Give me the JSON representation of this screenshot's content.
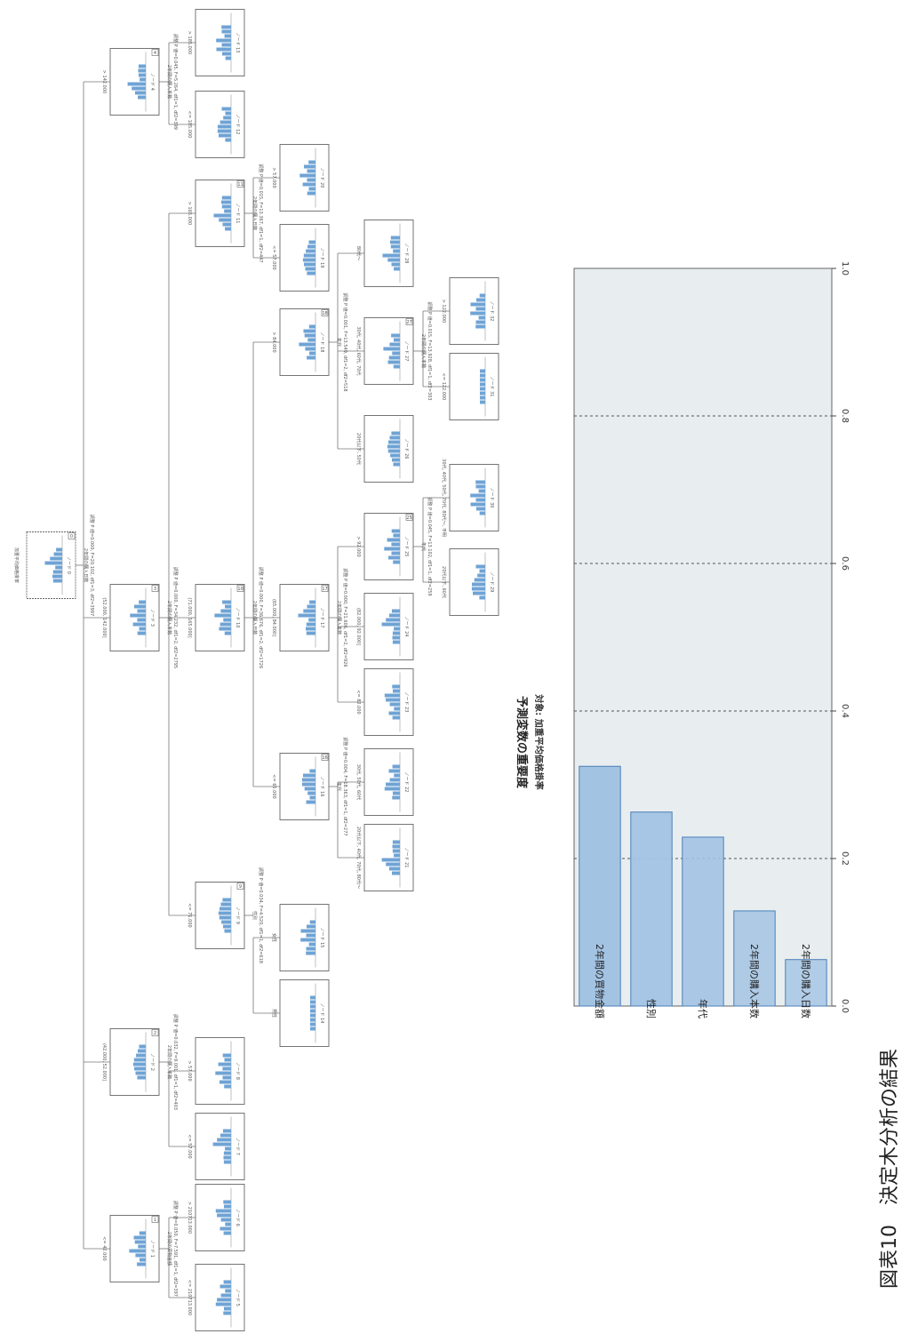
{
  "figure_caption": "図表10　決定木分析の結果",
  "tree": {
    "root_title": "加重平均価格掛率",
    "nodes": [
      {
        "id": "0",
        "label": "ノード 0",
        "badge": "0",
        "split": "2年間の購入日数",
        "stats": "調整 P 値=0.000, F=20.102, df1=3, df2=3997"
      },
      {
        "id": "1",
        "label": "ノード 1",
        "badge": "1",
        "edge": "<= 42.000",
        "split": "2年間の買物金額",
        "stats": "調整 P 値=0.050, F=7.591, df1=1, df2=397"
      },
      {
        "id": "2",
        "label": "ノード 2",
        "badge": "2",
        "edge": "(42.000, 52.000]",
        "split": "2年間の購入本数",
        "stats": "調整 P 値=0.032, F=9.001, df1=1, df2=403"
      },
      {
        "id": "3",
        "label": "ノード 3",
        "badge": "3",
        "edge": "(52.000, 142.000]",
        "split": "2年間の購入本数",
        "stats": "調整 P 値=0.000, F=34.232, df1=2, df2=2795"
      },
      {
        "id": "4",
        "label": "ノード 4",
        "badge": "4",
        "edge": "> 142.000",
        "split": "2年間の購入本数",
        "stats": "調整 P 値=0.045, F=5.264, df1=1, df2=399"
      },
      {
        "id": "5",
        "label": "ノード 5",
        "edge": "<= 210713.000"
      },
      {
        "id": "6",
        "label": "ノード 6",
        "edge": "> 210713.000"
      },
      {
        "id": "7",
        "label": "ノード 7",
        "edge": "<= 57.000"
      },
      {
        "id": "8",
        "label": "ノード 8",
        "edge": "> 57.000"
      },
      {
        "id": "9",
        "label": "ノード 9",
        "badge": "9",
        "edge": "<= 71.000",
        "split": "性別",
        "stats": "調整 P 値=0.034, F=4.520, df1=1, df2=618"
      },
      {
        "id": "10",
        "label": "ノード 10",
        "badge": "10",
        "edge": "(71.000, 165.000]",
        "split": "2年間の購入日数",
        "stats": "調整 P 値=0.000, F=36.676, df1=2, df2=1726"
      },
      {
        "id": "11",
        "label": "ノード 11",
        "badge": "11",
        "edge": "> 165.000",
        "split": "2年間の購入日数",
        "stats": "調整 P 値=0.015, F=13.367, df1=1, df2=447"
      },
      {
        "id": "12",
        "label": "ノード 12",
        "edge": "<= 185.000"
      },
      {
        "id": "13",
        "label": "ノード 13",
        "edge": "> 185.000"
      },
      {
        "id": "14",
        "label": "ノード 14",
        "edge": "男性"
      },
      {
        "id": "15",
        "label": "ノード 15",
        "edge": "女性"
      },
      {
        "id": "16",
        "label": "ノード 16",
        "badge": "16",
        "edge": "<= 65.000",
        "split": "年代",
        "stats": "調整 P 値=0.004, F=18.363, df1=1, df2=277"
      },
      {
        "id": "17",
        "label": "ノード 17",
        "badge": "17",
        "edge": "(65.000, 84.000]",
        "split": "2年間の購入本数",
        "stats": "調整 P 値=0.000, F=21.606, df1=2, df2=926"
      },
      {
        "id": "18",
        "label": "ノード 18",
        "badge": "18",
        "edge": "> 84.000",
        "split": "年代",
        "stats": "調整 P 値=0.001, F=13.549, df1=2, df2=518"
      },
      {
        "id": "19",
        "label": "ノード 19",
        "edge": "<= 57.000"
      },
      {
        "id": "20",
        "label": "ノード 20",
        "edge": "> 57.000"
      },
      {
        "id": "21",
        "label": "ノード 21",
        "edge": "20代以下, 40代, 70代, 80代〜"
      },
      {
        "id": "22",
        "label": "ノード 22",
        "edge": "30代, 50代, 60代"
      },
      {
        "id": "23",
        "label": "ノード 23",
        "edge": "<= 82.000"
      },
      {
        "id": "24",
        "label": "ノード 24",
        "edge": "(82.000, 92.000]"
      },
      {
        "id": "25",
        "label": "ノード 25",
        "badge": "25",
        "edge": "> 92.000",
        "split": "年代",
        "stats": "調整 P 値=0.045, F=13.102, df1=1, df2=259"
      },
      {
        "id": "26",
        "label": "ノード 26",
        "edge": "20代以下, 50代"
      },
      {
        "id": "27",
        "label": "ノード 27",
        "badge": "27",
        "edge": "30代, 40代, 60代, 70代",
        "split": "2年間の購入本数",
        "stats": "調整 P 値=0.015, F=13.928, df1=1, df2=303"
      },
      {
        "id": "28",
        "label": "ノード 28",
        "edge": "80代〜"
      },
      {
        "id": "29",
        "label": "ノード 29",
        "edge": "20代以下, 60代"
      },
      {
        "id": "30",
        "label": "ノード 30",
        "edge": "30代, 40代, 50代, 70代, 80代〜, 不明"
      },
      {
        "id": "31",
        "label": "ノード 31",
        "edge": "<= 122.000"
      },
      {
        "id": "32",
        "label": "ノード 32",
        "edge": "> 122.000"
      }
    ]
  },
  "chart_data": {
    "type": "bar",
    "orientation": "horizontal",
    "title": "予測変数の重要度",
    "subtitle": "対象: 加重平均価格掛率",
    "categories": [
      "2年間の買物金額",
      "性別",
      "年代",
      "2年間の購入本数",
      "2年間の購入日数"
    ],
    "values": [
      0.325,
      0.263,
      0.229,
      0.129,
      0.063
    ],
    "xlim": [
      0.0,
      1.0
    ],
    "ticks": [
      "0.0",
      "0.2",
      "0.4",
      "0.6",
      "0.8",
      "1.0"
    ],
    "grid": true,
    "colors": {
      "bar": "#a3c3e3",
      "bar_stroke": "#4a7fb8",
      "plot_bg": "#e8edef"
    }
  }
}
